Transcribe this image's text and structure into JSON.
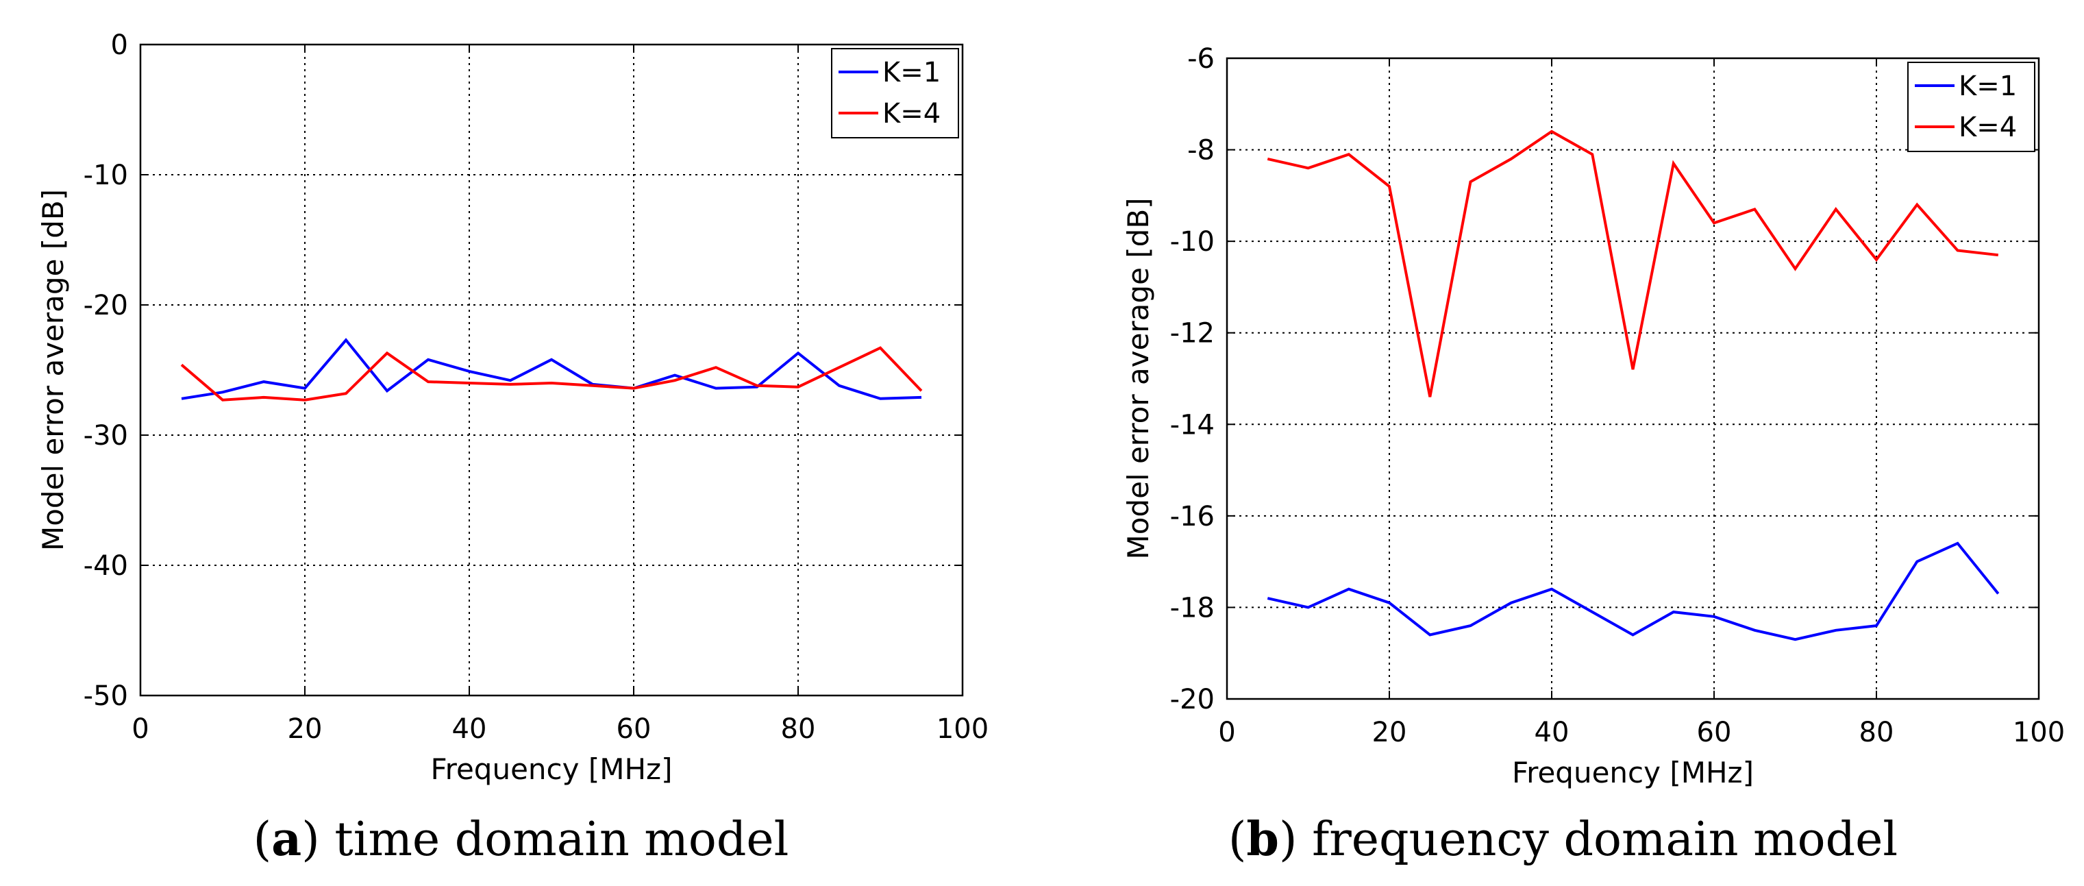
{
  "chart_data": [
    {
      "id": "a",
      "type": "line",
      "title": "",
      "xlabel": "Frequency [MHz]",
      "ylabel": "Model error average [dB]",
      "xlim": [
        0,
        100
      ],
      "ylim": [
        -50,
        0
      ],
      "xticks": [
        0,
        20,
        40,
        60,
        80,
        100
      ],
      "yticks": [
        0,
        -10,
        -20,
        -30,
        -40,
        -50
      ],
      "grid": true,
      "legend_position": "top-right",
      "x": [
        5,
        10,
        15,
        20,
        25,
        30,
        35,
        40,
        45,
        50,
        55,
        60,
        65,
        70,
        75,
        80,
        85,
        90,
        95
      ],
      "series": [
        {
          "name": "K=1",
          "color": "#0000ff",
          "values": [
            -27.2,
            -26.7,
            -25.9,
            -26.4,
            -22.7,
            -26.6,
            -24.2,
            -25.1,
            -25.8,
            -24.2,
            -26.1,
            -26.4,
            -25.4,
            -26.4,
            -26.3,
            -23.7,
            -26.2,
            -27.2,
            -27.1
          ]
        },
        {
          "name": "K=4",
          "color": "#ff0000",
          "values": [
            -24.6,
            -27.3,
            -27.1,
            -27.3,
            -26.8,
            -23.7,
            -25.9,
            -26.0,
            -26.1,
            -26.0,
            -26.2,
            -26.4,
            -25.8,
            -24.8,
            -26.2,
            -26.3,
            -24.8,
            -23.3,
            -26.6
          ]
        }
      ],
      "caption_label": "a",
      "caption_text": ") time domain model",
      "caption_open": "("
    },
    {
      "id": "b",
      "type": "line",
      "title": "",
      "xlabel": "Frequency [MHz]",
      "ylabel": "Model error average [dB]",
      "xlim": [
        0,
        100
      ],
      "ylim": [
        -20,
        -6
      ],
      "xticks": [
        0,
        20,
        40,
        60,
        80,
        100
      ],
      "yticks": [
        -6,
        -8,
        -10,
        -12,
        -14,
        -16,
        -18,
        -20
      ],
      "grid": true,
      "legend_position": "top-right",
      "x": [
        5,
        10,
        15,
        20,
        25,
        30,
        35,
        40,
        45,
        50,
        55,
        60,
        65,
        70,
        75,
        80,
        85,
        90,
        95
      ],
      "series": [
        {
          "name": "K=1",
          "color": "#0000ff",
          "values": [
            -17.8,
            -18.0,
            -17.6,
            -17.9,
            -18.6,
            -18.4,
            -17.9,
            -17.6,
            -18.1,
            -18.6,
            -18.1,
            -18.2,
            -18.5,
            -18.7,
            -18.5,
            -18.4,
            -17.0,
            -16.6,
            -17.7
          ]
        },
        {
          "name": "K=4",
          "color": "#ff0000",
          "values": [
            -8.2,
            -8.4,
            -8.1,
            -8.8,
            -13.4,
            -8.7,
            -8.2,
            -7.6,
            -8.1,
            -12.8,
            -8.3,
            -9.6,
            -9.3,
            -10.6,
            -9.3,
            -10.4,
            -9.2,
            -10.2,
            -10.3
          ]
        }
      ],
      "caption_label": "b",
      "caption_text": ") frequency domain model",
      "caption_open": "("
    }
  ]
}
